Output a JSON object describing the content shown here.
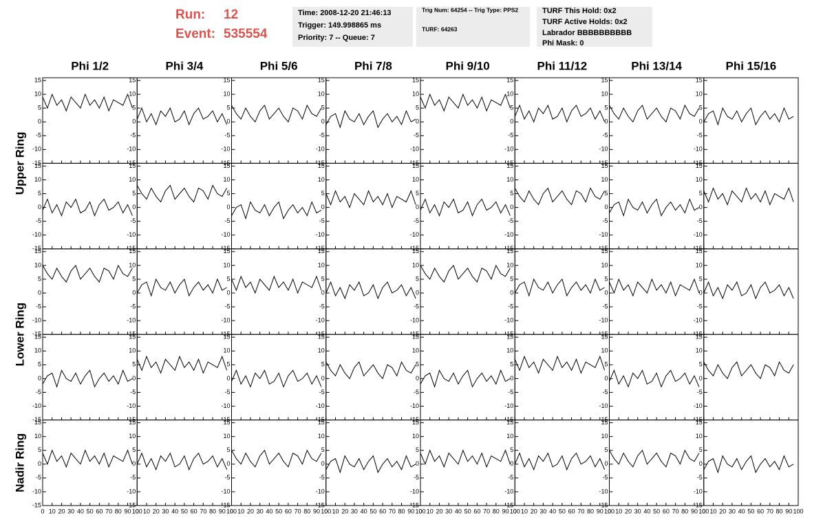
{
  "header": {
    "run_label": "Run:",
    "run": "12",
    "event_label": "Event:",
    "event": "535554",
    "boxes": [
      [
        "Time: 2008-12-20 21:46:13",
        "Trigger: 149.998865 ms",
        "Priority: 7 -- Queue: 7"
      ],
      [
        "Trig Num: 64254 -- Trig Type: PPS2",
        "TURF: 64263"
      ],
      [
        "TURF This Hold: 0x2",
        "TURF Active Holds: 0x2",
        "Labrador BBBBBBBBBB",
        "Phi Mask: 0"
      ]
    ]
  },
  "columns": [
    "Phi 1/2",
    "Phi 3/4",
    "Phi 5/6",
    "Phi 7/8",
    "Phi 9/10",
    "Phi 11/12",
    "Phi 13/14",
    "Phi 15/16"
  ],
  "rows": [
    "Upper Ring",
    "Lower Ring",
    "Nadir Ring"
  ],
  "axes": {
    "x": [
      0,
      5,
      10,
      15,
      20,
      25,
      30,
      35,
      40,
      45,
      50,
      55,
      60,
      65,
      70,
      75,
      80,
      85,
      90,
      95
    ],
    "xlim": [
      0,
      100
    ],
    "xticks": [
      0,
      10,
      20,
      30,
      40,
      50,
      60,
      70,
      80,
      90,
      100
    ],
    "ylim": [
      -15,
      16
    ],
    "yticks": [
      -15,
      -10,
      -5,
      0,
      5,
      10,
      15
    ],
    "color": "#000000"
  },
  "chart_data": [
    {
      "type": "line",
      "values": [
        9,
        5,
        10,
        6,
        8,
        4,
        9,
        7,
        5,
        10,
        6,
        8,
        5,
        9,
        4,
        8,
        7,
        6,
        10,
        5
      ]
    },
    {
      "type": "line",
      "values": [
        1,
        5,
        0,
        3,
        -1,
        4,
        2,
        5,
        0,
        1,
        4,
        -1,
        3,
        5,
        1,
        2,
        4,
        0,
        3,
        -1
      ]
    },
    {
      "type": "line",
      "values": [
        6,
        3,
        1,
        5,
        2,
        0,
        4,
        6,
        1,
        3,
        5,
        2,
        0,
        5,
        4,
        1,
        6,
        3,
        2,
        5
      ]
    },
    {
      "type": "line",
      "values": [
        -1,
        2,
        3,
        -2,
        4,
        1,
        0,
        3,
        -1,
        2,
        4,
        -2,
        1,
        3,
        0,
        2,
        -1,
        4,
        0,
        1
      ]
    },
    {
      "type": "line",
      "values": [
        9,
        5,
        10,
        6,
        8,
        4,
        9,
        7,
        5,
        10,
        6,
        8,
        5,
        9,
        4,
        8,
        7,
        6,
        10,
        5
      ]
    },
    {
      "type": "line",
      "values": [
        2,
        6,
        1,
        4,
        0,
        5,
        3,
        6,
        1,
        2,
        5,
        0,
        4,
        6,
        2,
        3,
        5,
        1,
        4,
        0
      ]
    },
    {
      "type": "line",
      "values": [
        6,
        3,
        1,
        5,
        2,
        0,
        4,
        6,
        1,
        3,
        5,
        2,
        0,
        5,
        4,
        1,
        6,
        3,
        2,
        5
      ]
    },
    {
      "type": "line",
      "values": [
        0,
        3,
        4,
        -1,
        5,
        2,
        1,
        4,
        0,
        3,
        5,
        -1,
        2,
        4,
        1,
        3,
        0,
        5,
        1,
        2
      ]
    },
    {
      "type": "line",
      "values": [
        -1,
        3,
        -2,
        1,
        -3,
        2,
        0,
        3,
        -2,
        -1,
        2,
        -3,
        1,
        3,
        -1,
        0,
        2,
        -2,
        1,
        -3
      ]
    },
    {
      "type": "line",
      "values": [
        8,
        5,
        3,
        7,
        4,
        2,
        6,
        8,
        3,
        5,
        7,
        4,
        2,
        7,
        6,
        3,
        8,
        5,
        4,
        7
      ]
    },
    {
      "type": "line",
      "values": [
        -3,
        0,
        1,
        -4,
        2,
        -1,
        -2,
        1,
        -3,
        0,
        2,
        -4,
        -1,
        1,
        -2,
        0,
        -3,
        2,
        -2,
        -1
      ]
    },
    {
      "type": "line",
      "values": [
        5,
        1,
        6,
        2,
        4,
        0,
        5,
        3,
        1,
        6,
        2,
        4,
        1,
        5,
        0,
        4,
        3,
        2,
        6,
        1
      ]
    },
    {
      "type": "line",
      "values": [
        -1,
        3,
        -2,
        1,
        -3,
        2,
        0,
        3,
        -2,
        -1,
        2,
        -3,
        1,
        3,
        -1,
        0,
        2,
        -2,
        1,
        -3
      ]
    },
    {
      "type": "line",
      "values": [
        7,
        4,
        2,
        6,
        3,
        1,
        5,
        7,
        2,
        4,
        6,
        3,
        1,
        6,
        5,
        2,
        7,
        4,
        3,
        6
      ]
    },
    {
      "type": "line",
      "values": [
        -2,
        1,
        2,
        -3,
        3,
        0,
        -1,
        2,
        -2,
        1,
        3,
        -3,
        0,
        2,
        -1,
        1,
        -2,
        3,
        -1,
        0
      ]
    },
    {
      "type": "line",
      "values": [
        6,
        2,
        7,
        3,
        5,
        1,
        6,
        4,
        2,
        7,
        3,
        5,
        2,
        6,
        1,
        5,
        4,
        3,
        7,
        2
      ]
    },
    {
      "type": "line",
      "values": [
        10,
        7,
        5,
        9,
        6,
        4,
        8,
        10,
        5,
        7,
        9,
        6,
        4,
        9,
        8,
        5,
        10,
        7,
        6,
        9
      ]
    },
    {
      "type": "line",
      "values": [
        0,
        3,
        4,
        -1,
        5,
        2,
        1,
        4,
        0,
        3,
        5,
        -1,
        2,
        4,
        1,
        3,
        0,
        5,
        1,
        2
      ]
    },
    {
      "type": "line",
      "values": [
        5,
        1,
        6,
        2,
        4,
        0,
        5,
        3,
        1,
        6,
        2,
        4,
        1,
        5,
        0,
        4,
        3,
        2,
        6,
        1
      ]
    },
    {
      "type": "line",
      "values": [
        0,
        4,
        -1,
        2,
        -2,
        3,
        1,
        4,
        -1,
        0,
        3,
        -2,
        2,
        4,
        0,
        1,
        3,
        -1,
        2,
        -2
      ]
    },
    {
      "type": "line",
      "values": [
        10,
        7,
        5,
        9,
        6,
        4,
        8,
        10,
        5,
        7,
        9,
        6,
        4,
        9,
        8,
        5,
        10,
        7,
        6,
        9
      ]
    },
    {
      "type": "line",
      "values": [
        0,
        3,
        4,
        -1,
        5,
        2,
        1,
        4,
        0,
        3,
        5,
        -1,
        2,
        4,
        1,
        3,
        0,
        5,
        1,
        2
      ]
    },
    {
      "type": "line",
      "values": [
        4,
        0,
        5,
        1,
        3,
        -1,
        4,
        2,
        0,
        5,
        1,
        3,
        0,
        4,
        -1,
        3,
        2,
        1,
        5,
        0
      ]
    },
    {
      "type": "line",
      "values": [
        0,
        4,
        -1,
        2,
        -2,
        3,
        1,
        4,
        -1,
        0,
        3,
        -2,
        2,
        4,
        0,
        1,
        3,
        -1,
        2,
        -2
      ]
    },
    {
      "type": "line",
      "values": [
        -2,
        1,
        2,
        -3,
        3,
        0,
        -1,
        2,
        -2,
        1,
        3,
        -3,
        0,
        2,
        -1,
        1,
        -2,
        3,
        -1,
        0
      ]
    },
    {
      "type": "line",
      "values": [
        7,
        3,
        8,
        4,
        6,
        2,
        7,
        5,
        3,
        8,
        4,
        6,
        3,
        7,
        2,
        6,
        5,
        4,
        8,
        3
      ]
    },
    {
      "type": "line",
      "values": [
        -1,
        3,
        -2,
        1,
        -3,
        2,
        0,
        3,
        -2,
        -1,
        2,
        -3,
        1,
        3,
        -1,
        0,
        2,
        -2,
        1,
        -3
      ]
    },
    {
      "type": "line",
      "values": [
        6,
        3,
        1,
        5,
        2,
        0,
        4,
        6,
        1,
        3,
        5,
        2,
        0,
        5,
        4,
        1,
        6,
        3,
        2,
        5
      ]
    },
    {
      "type": "line",
      "values": [
        -2,
        1,
        2,
        -3,
        3,
        0,
        -1,
        2,
        -2,
        1,
        3,
        -3,
        0,
        2,
        -1,
        1,
        -2,
        3,
        -1,
        0
      ]
    },
    {
      "type": "line",
      "values": [
        7,
        3,
        8,
        4,
        6,
        2,
        7,
        5,
        3,
        8,
        4,
        6,
        3,
        7,
        2,
        6,
        5,
        4,
        8,
        3
      ]
    },
    {
      "type": "line",
      "values": [
        -1,
        3,
        -2,
        1,
        -3,
        2,
        0,
        3,
        -2,
        -1,
        2,
        -3,
        1,
        3,
        -1,
        0,
        2,
        -2,
        1,
        -3
      ]
    },
    {
      "type": "line",
      "values": [
        6,
        3,
        1,
        5,
        2,
        0,
        4,
        6,
        1,
        3,
        5,
        2,
        0,
        5,
        4,
        1,
        6,
        3,
        2,
        5
      ]
    },
    {
      "type": "line",
      "values": [
        4,
        0,
        5,
        1,
        3,
        -1,
        4,
        2,
        0,
        5,
        1,
        3,
        0,
        4,
        -1,
        3,
        2,
        1,
        5,
        0
      ]
    },
    {
      "type": "line",
      "values": [
        0,
        4,
        -1,
        2,
        -2,
        3,
        1,
        4,
        -1,
        0,
        3,
        -2,
        2,
        4,
        0,
        1,
        3,
        -1,
        2,
        -2
      ]
    },
    {
      "type": "line",
      "values": [
        5,
        2,
        0,
        4,
        1,
        -1,
        3,
        5,
        0,
        2,
        4,
        1,
        -1,
        4,
        3,
        0,
        5,
        2,
        1,
        4
      ]
    },
    {
      "type": "line",
      "values": [
        -2,
        1,
        2,
        -3,
        3,
        0,
        -1,
        2,
        -2,
        1,
        3,
        -3,
        0,
        2,
        -1,
        1,
        -2,
        3,
        -1,
        0
      ]
    },
    {
      "type": "line",
      "values": [
        4,
        0,
        5,
        1,
        3,
        -1,
        4,
        2,
        0,
        5,
        1,
        3,
        0,
        4,
        -1,
        3,
        2,
        1,
        5,
        0
      ]
    },
    {
      "type": "line",
      "values": [
        0,
        4,
        -1,
        2,
        -2,
        3,
        1,
        4,
        -1,
        0,
        3,
        -2,
        2,
        4,
        0,
        1,
        3,
        -1,
        2,
        -2
      ]
    },
    {
      "type": "line",
      "values": [
        5,
        2,
        0,
        4,
        1,
        -1,
        3,
        5,
        0,
        2,
        4,
        1,
        -1,
        4,
        3,
        0,
        5,
        2,
        1,
        4
      ]
    },
    {
      "type": "line",
      "values": [
        -2,
        1,
        2,
        -3,
        3,
        0,
        -1,
        2,
        -2,
        1,
        3,
        -3,
        0,
        2,
        -1,
        1,
        -2,
        3,
        -1,
        0
      ]
    }
  ]
}
